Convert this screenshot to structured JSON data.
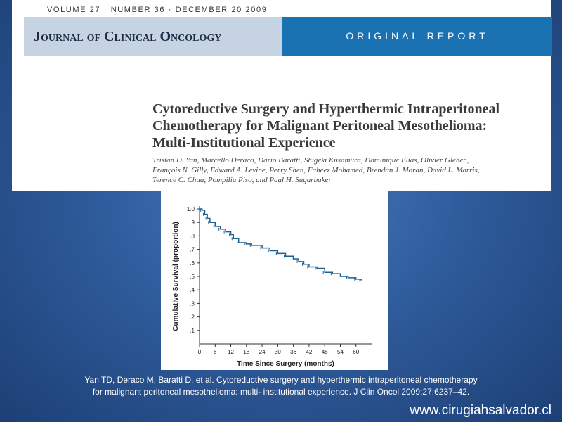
{
  "article": {
    "issue_line": "VOLUME 27 · NUMBER 36 · DECEMBER 20 2009",
    "journal_name": "Journal of Clinical Oncology",
    "section_label": "ORIGINAL REPORT",
    "title_lines": [
      "Cytoreductive Surgery and Hyperthermic Intraperitoneal",
      "Chemotherapy for Malignant Peritoneal Mesothelioma:",
      "Multi-Institutional Experience"
    ],
    "author_lines": [
      "Tristan D. Yan, Marcello Deraco, Dario Baratti, Shigeki Kusamura, Dominique Elias, Olivier Glehen,",
      "François N. Gilly, Edward A. Levine, Perry Shen, Faheez Mohamed, Brendan J. Moran, David L. Morris,",
      "Terence C. Chua, Pompiliu Piso, and Paul H. Sugarbaker"
    ]
  },
  "chart_data": {
    "type": "line",
    "xlabel": "Time Since Surgery (months)",
    "ylabel": "Cumulative Survival (proportion)",
    "xlim": [
      0,
      66
    ],
    "ylim": [
      0,
      1.0
    ],
    "x_ticks": [
      0,
      6,
      12,
      18,
      24,
      30,
      36,
      42,
      48,
      54,
      60
    ],
    "y_ticks": [
      ".1",
      ".2",
      ".3",
      ".4",
      ".5",
      ".6",
      ".7",
      ".8",
      ".9",
      "1.0"
    ],
    "y_tick_values": [
      0.1,
      0.2,
      0.3,
      0.4,
      0.5,
      0.6,
      0.7,
      0.8,
      0.9,
      1.0
    ],
    "grid": false,
    "line_color": "#1d5f8f",
    "series": [
      {
        "x": [
          0,
          1,
          2,
          3,
          4,
          6,
          8,
          10,
          12,
          13,
          15,
          18,
          20,
          24,
          27,
          30,
          33,
          36,
          38,
          40,
          42,
          45,
          48,
          51,
          54,
          57,
          60,
          62
        ],
        "y": [
          1.0,
          0.99,
          0.96,
          0.93,
          0.9,
          0.87,
          0.85,
          0.83,
          0.81,
          0.78,
          0.75,
          0.74,
          0.73,
          0.71,
          0.69,
          0.67,
          0.65,
          0.63,
          0.61,
          0.59,
          0.57,
          0.56,
          0.53,
          0.52,
          0.5,
          0.49,
          0.48,
          0.47
        ]
      }
    ]
  },
  "citation_lines": [
    "Yan TD, Deraco M, Baratti D, et al. Cytoreductive surgery and hyperthermic intraperitoneal chemotherapy",
    "for malignant peritoneal mesothelioma: multi- institutional experience. J Clin Oncol 2009;27:6237–42."
  ],
  "website": "www.cirugiahsalvador.cl"
}
